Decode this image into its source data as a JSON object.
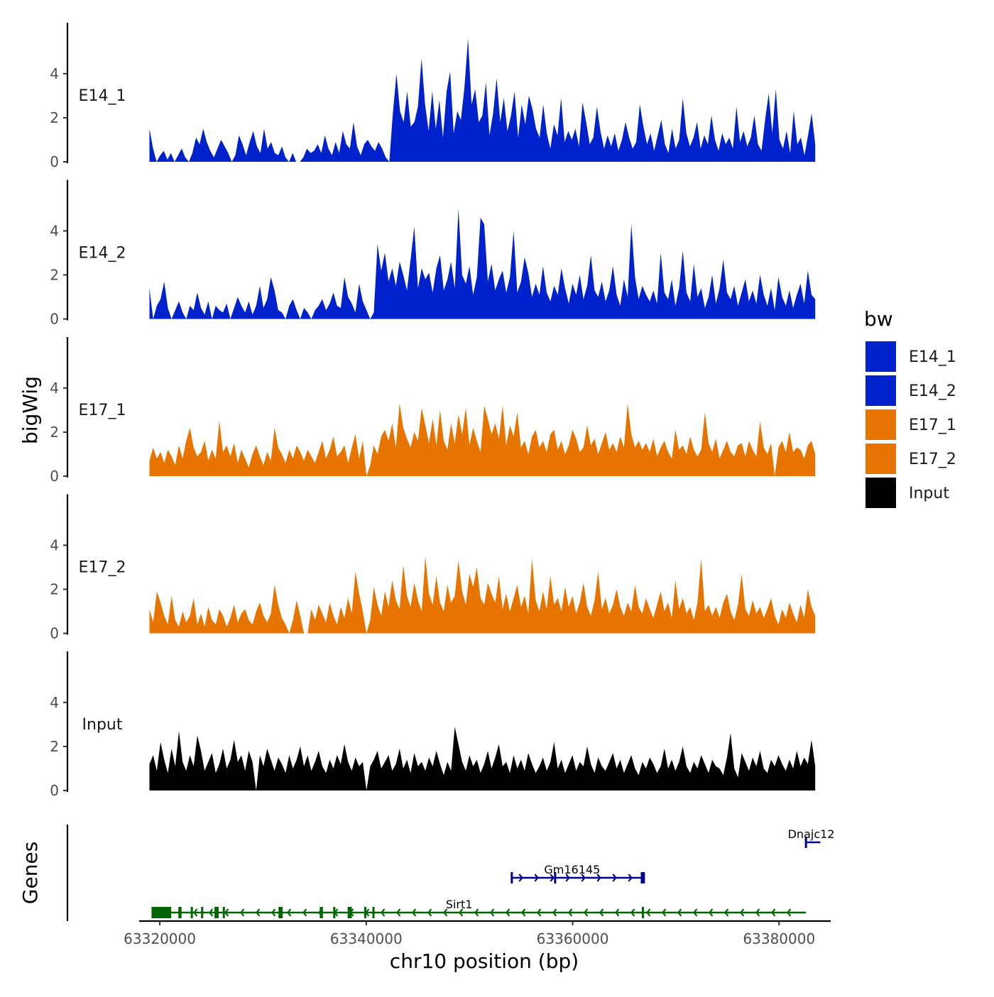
{
  "chart_data": {
    "type": "area",
    "chrom": "chr10",
    "xlabel": "chr10 position (bp)",
    "ylabel": "bigWig",
    "genes_axis_label": "Genes",
    "xlim": [
      63318000,
      63385000
    ],
    "x_ticks": [
      63320000,
      63340000,
      63360000,
      63380000
    ],
    "x_tick_labels": [
      "63320000",
      "63340000",
      "63360000",
      "63380000"
    ],
    "ylim": [
      0,
      6
    ],
    "y_ticks": [
      0,
      2,
      4
    ],
    "y_tick_labels": [
      "0",
      "2",
      "4"
    ],
    "data_start": 63319000,
    "data_end": 63383500,
    "legend": {
      "title": "bw",
      "entries": [
        {
          "label": "E14_1",
          "color": "#0022CC"
        },
        {
          "label": "E14_2",
          "color": "#0022CC"
        },
        {
          "label": "E17_1",
          "color": "#E87400"
        },
        {
          "label": "E17_2",
          "color": "#E87400"
        },
        {
          "label": "Input",
          "color": "#000000"
        }
      ]
    },
    "series": [
      {
        "name": "E14_1",
        "color": "#0022CC",
        "values": [
          1.5,
          0.6,
          0.0,
          0.3,
          0.5,
          0.1,
          0.4,
          0.0,
          0.3,
          0.6,
          0.2,
          0.0,
          0.4,
          1.1,
          0.8,
          1.5,
          0.9,
          0.5,
          0.2,
          0.6,
          1.0,
          0.7,
          0.4,
          0.0,
          0.3,
          1.2,
          0.8,
          0.3,
          0.9,
          1.4,
          0.7,
          0.4,
          1.5,
          0.6,
          0.9,
          0.4,
          0.3,
          0.7,
          0.2,
          0.0,
          0.4,
          0.0,
          0.0,
          0.2,
          0.6,
          0.4,
          0.5,
          0.8,
          0.4,
          1.2,
          0.6,
          0.3,
          0.9,
          0.4,
          1.4,
          0.8,
          0.6,
          1.8,
          0.7,
          0.3,
          0.8,
          1.0,
          0.7,
          0.5,
          0.9,
          0.6,
          0.2,
          0.0,
          2.2,
          4.0,
          2.3,
          1.8,
          3.2,
          1.6,
          1.8,
          2.5,
          4.7,
          2.6,
          1.4,
          3.2,
          1.5,
          2.8,
          1.1,
          3.2,
          4.1,
          1.3,
          2.3,
          1.9,
          3.4,
          5.6,
          2.6,
          3.3,
          1.8,
          2.1,
          3.6,
          1.2,
          2.2,
          3.8,
          1.8,
          2.9,
          1.4,
          2.1,
          3.2,
          1.1,
          2.6,
          1.7,
          3.0,
          2.4,
          1.5,
          1.1,
          2.6,
          1.3,
          0.6,
          1.7,
          1.2,
          2.9,
          0.9,
          1.4,
          1.0,
          1.5,
          0.7,
          2.7,
          1.8,
          0.8,
          1.1,
          2.5,
          1.4,
          0.6,
          1.2,
          0.7,
          1.3,
          0.5,
          1.0,
          1.8,
          1.1,
          0.6,
          0.9,
          2.6,
          1.6,
          0.8,
          1.3,
          0.5,
          1.2,
          1.9,
          0.8,
          0.4,
          1.5,
          0.6,
          1.0,
          2.9,
          1.3,
          0.7,
          1.1,
          1.8,
          0.6,
          1.2,
          0.8,
          2.1,
          1.0,
          0.5,
          1.3,
          0.8,
          1.1,
          0.6,
          2.5,
          0.9,
          1.4,
          0.7,
          1.1,
          2.1,
          0.8,
          0.5,
          1.9,
          3.1,
          1.3,
          3.3,
          1.0,
          0.6,
          1.4,
          0.4,
          2.3,
          0.8,
          1.1,
          0.3,
          1.2,
          2.2,
          0.8
        ]
      },
      {
        "name": "E14_2",
        "color": "#0022CC",
        "values": [
          1.4,
          0.0,
          0.6,
          0.9,
          1.7,
          0.5,
          0.0,
          0.4,
          0.8,
          0.3,
          0.0,
          0.6,
          0.4,
          1.2,
          0.5,
          0.2,
          0.8,
          0.0,
          0.6,
          0.4,
          0.3,
          0.7,
          0.0,
          0.5,
          1.0,
          0.6,
          0.3,
          0.8,
          0.2,
          0.6,
          1.5,
          0.5,
          0.9,
          1.9,
          1.3,
          0.4,
          0.3,
          0.0,
          0.6,
          0.9,
          0.4,
          0.0,
          0.5,
          0.3,
          0.0,
          0.4,
          0.6,
          0.9,
          0.4,
          0.7,
          1.2,
          0.6,
          0.5,
          1.9,
          1.0,
          0.7,
          0.3,
          1.6,
          0.8,
          0.4,
          0.0,
          0.3,
          3.4,
          2.2,
          3.0,
          1.7,
          2.3,
          1.5,
          2.6,
          2.0,
          1.3,
          2.7,
          4.2,
          1.4,
          2.3,
          1.8,
          2.1,
          1.2,
          2.3,
          2.9,
          1.3,
          1.8,
          2.6,
          1.4,
          5.0,
          2.0,
          1.6,
          2.4,
          1.1,
          1.9,
          4.6,
          4.3,
          1.7,
          2.5,
          1.3,
          1.8,
          2.2,
          1.2,
          1.9,
          4.0,
          1.2,
          1.7,
          2.8,
          2.1,
          1.0,
          1.6,
          1.1,
          2.4,
          1.2,
          0.8,
          1.5,
          1.1,
          2.3,
          1.4,
          0.7,
          1.6,
          1.1,
          2.0,
          0.9,
          1.5,
          2.9,
          1.3,
          1.0,
          1.7,
          0.8,
          1.3,
          2.4,
          1.1,
          0.6,
          1.8,
          1.0,
          4.3,
          1.9,
          0.9,
          1.5,
          1.1,
          0.8,
          1.3,
          0.7,
          3.0,
          1.2,
          0.9,
          1.8,
          0.6,
          1.4,
          3.1,
          1.2,
          0.8,
          2.5,
          1.0,
          1.4,
          0.5,
          1.0,
          2.0,
          0.7,
          1.4,
          2.7,
          1.2,
          0.9,
          1.5,
          0.6,
          1.2,
          1.8,
          0.8,
          1.3,
          0.7,
          2.0,
          1.1,
          0.6,
          1.4,
          0.4,
          1.9,
          1.0,
          0.6,
          1.3,
          0.5,
          1.1,
          1.6,
          0.7,
          2.2,
          1.1,
          0.9
        ]
      },
      {
        "name": "E17_1",
        "color": "#E87400",
        "values": [
          0.7,
          1.3,
          0.8,
          1.1,
          0.6,
          1.2,
          0.9,
          0.5,
          1.4,
          0.8,
          1.6,
          2.2,
          1.3,
          0.9,
          1.1,
          1.6,
          0.7,
          1.2,
          0.8,
          2.5,
          1.1,
          1.4,
          0.9,
          1.5,
          0.6,
          1.2,
          0.8,
          0.4,
          1.0,
          1.4,
          0.9,
          0.5,
          1.1,
          0.7,
          2.2,
          1.3,
          1.0,
          0.6,
          1.2,
          0.8,
          1.4,
          1.1,
          0.7,
          1.2,
          0.9,
          0.6,
          1.1,
          1.6,
          0.8,
          1.2,
          1.8,
          0.9,
          1.1,
          1.4,
          0.6,
          1.3,
          1.9,
          0.8,
          1.6,
          0.0,
          0.5,
          1.4,
          1.0,
          1.8,
          2.1,
          1.6,
          2.4,
          1.3,
          3.3,
          2.2,
          1.7,
          1.3,
          2.0,
          1.6,
          3.1,
          2.3,
          1.5,
          2.6,
          1.4,
          3.0,
          1.6,
          1.2,
          2.4,
          1.5,
          2.8,
          1.9,
          3.1,
          1.4,
          2.2,
          1.6,
          1.1,
          3.2,
          2.6,
          1.9,
          2.4,
          1.7,
          3.2,
          1.4,
          2.3,
          1.8,
          2.9,
          1.3,
          1.6,
          1.0,
          1.8,
          2.1,
          1.3,
          1.6,
          1.1,
          1.9,
          2.1,
          1.2,
          1.6,
          1.0,
          1.4,
          2.1,
          1.7,
          1.1,
          1.3,
          2.3,
          1.4,
          1.7,
          1.0,
          1.5,
          2.0,
          1.2,
          1.5,
          1.1,
          1.8,
          1.3,
          3.3,
          1.9,
          1.3,
          1.6,
          1.2,
          1.5,
          1.1,
          1.7,
          0.9,
          1.3,
          1.6,
          1.1,
          0.8,
          2.1,
          1.2,
          1.4,
          1.0,
          1.8,
          1.2,
          0.9,
          1.2,
          2.9,
          1.5,
          1.1,
          1.7,
          0.8,
          1.2,
          1.6,
          1.1,
          0.9,
          1.4,
          1.5,
          0.9,
          1.6,
          1.2,
          0.9,
          2.5,
          1.3,
          1.0,
          1.5,
          0.0,
          1.3,
          1.6,
          1.1,
          2.0,
          1.1,
          1.3,
          1.2,
          0.8,
          1.4,
          1.6,
          1.0
        ]
      },
      {
        "name": "E17_2",
        "color": "#E87400",
        "values": [
          1.1,
          0.5,
          1.9,
          1.4,
          0.8,
          0.4,
          1.7,
          0.6,
          0.3,
          1.0,
          0.5,
          0.8,
          1.6,
          0.4,
          0.9,
          0.3,
          1.2,
          0.6,
          0.4,
          1.1,
          0.8,
          0.3,
          0.7,
          1.3,
          0.5,
          0.9,
          1.1,
          0.6,
          0.4,
          1.0,
          1.4,
          0.8,
          0.5,
          0.9,
          2.2,
          1.3,
          0.7,
          0.4,
          0.0,
          0.6,
          1.5,
          0.8,
          0.0,
          0.0,
          1.1,
          0.6,
          1.3,
          0.9,
          0.5,
          1.4,
          0.8,
          0.4,
          1.2,
          0.7,
          1.6,
          0.9,
          2.8,
          1.8,
          1.0,
          0.0,
          0.6,
          2.1,
          1.3,
          0.8,
          1.9,
          1.2,
          2.4,
          1.5,
          1.1,
          3.1,
          1.7,
          1.2,
          2.3,
          1.5,
          1.0,
          3.5,
          1.8,
          1.3,
          2.6,
          1.4,
          1.0,
          2.2,
          1.4,
          1.7,
          3.3,
          1.9,
          1.3,
          2.7,
          2.1,
          3.0,
          1.6,
          1.3,
          2.3,
          1.8,
          1.4,
          2.6,
          1.1,
          1.8,
          1.0,
          1.6,
          2.2,
          1.2,
          1.7,
          0.9,
          3.4,
          1.5,
          1.0,
          1.9,
          1.1,
          2.6,
          1.3,
          1.6,
          1.0,
          2.1,
          1.2,
          1.7,
          0.9,
          1.4,
          2.3,
          1.2,
          0.8,
          1.5,
          2.8,
          1.1,
          1.6,
          0.9,
          1.3,
          2.0,
          1.2,
          0.8,
          1.4,
          1.0,
          2.2,
          1.2,
          0.9,
          1.6,
          1.1,
          0.7,
          1.3,
          1.9,
          1.0,
          1.4,
          0.7,
          2.4,
          1.1,
          1.6,
          0.9,
          1.2,
          0.6,
          1.4,
          3.4,
          1.0,
          1.3,
          0.8,
          1.2,
          0.7,
          1.4,
          1.8,
          1.0,
          0.6,
          1.3,
          2.7,
          1.1,
          0.8,
          1.5,
          0.9,
          1.2,
          0.7,
          1.1,
          1.6,
          0.8,
          0.4,
          1.1,
          0.7,
          1.4,
          0.9,
          0.5,
          1.3,
          0.7,
          2.0,
          1.2,
          0.8
        ]
      },
      {
        "name": "Input",
        "color": "#000000",
        "values": [
          1.2,
          1.6,
          0.9,
          2.2,
          1.4,
          0.8,
          1.9,
          1.1,
          2.7,
          1.3,
          0.9,
          1.6,
          1.1,
          2.5,
          1.8,
          0.9,
          1.3,
          1.7,
          0.8,
          1.2,
          1.9,
          1.0,
          1.4,
          2.3,
          1.3,
          1.6,
          0.9,
          1.8,
          1.3,
          0.0,
          1.6,
          1.1,
          1.9,
          1.4,
          0.9,
          1.5,
          1.2,
          0.8,
          1.6,
          1.0,
          1.4,
          2.0,
          1.1,
          1.6,
          0.9,
          1.3,
          1.8,
          1.1,
          0.8,
          1.4,
          1.0,
          1.6,
          1.2,
          2.1,
          1.3,
          0.9,
          1.5,
          1.1,
          1.3,
          0.0,
          1.1,
          1.4,
          1.8,
          1.0,
          1.3,
          1.6,
          0.9,
          1.2,
          1.9,
          1.0,
          1.4,
          0.8,
          1.7,
          1.1,
          1.3,
          0.9,
          1.5,
          1.1,
          1.8,
          1.2,
          0.7,
          1.3,
          0.9,
          2.9,
          2.1,
          1.3,
          0.9,
          1.6,
          1.1,
          1.4,
          0.8,
          1.2,
          1.8,
          1.0,
          1.5,
          2.1,
          1.1,
          1.3,
          0.8,
          1.6,
          1.0,
          1.4,
          0.9,
          1.7,
          1.2,
          0.8,
          1.1,
          1.5,
          0.9,
          1.3,
          2.2,
          1.0,
          1.4,
          0.8,
          1.2,
          1.6,
          0.9,
          1.3,
          1.1,
          2.0,
          1.2,
          0.8,
          1.5,
          1.1,
          0.9,
          1.3,
          1.7,
          1.0,
          1.4,
          0.8,
          1.2,
          1.6,
          1.0,
          0.7,
          1.3,
          1.0,
          1.5,
          1.2,
          0.8,
          1.1,
          1.9,
          1.0,
          1.4,
          0.9,
          1.3,
          2.0,
          1.1,
          0.8,
          1.3,
          1.0,
          1.6,
          1.2,
          0.8,
          1.4,
          1.1,
          1.0,
          0.7,
          1.5,
          2.6,
          1.0,
          0.6,
          1.7,
          1.3,
          0.9,
          1.5,
          1.1,
          1.8,
          1.0,
          0.8,
          1.4,
          1.1,
          1.6,
          1.2,
          0.9,
          1.4,
          1.0,
          1.8,
          1.1,
          1.5,
          1.2,
          2.3,
          1.1
        ]
      }
    ],
    "genes": [
      {
        "name": "Sirt1",
        "strand": "-",
        "start": 63319200,
        "end": 63382600,
        "color": "#006400",
        "row": 0,
        "exons": [
          [
            63319200,
            63321100
          ],
          [
            63321800,
            63322100
          ],
          [
            63323000,
            63323200
          ],
          [
            63324000,
            63324200
          ],
          [
            63325300,
            63325700
          ],
          [
            63326100,
            63326300
          ],
          [
            63331500,
            63331900
          ],
          [
            63335500,
            63335800
          ],
          [
            63336800,
            63337000
          ],
          [
            63338200,
            63338600
          ],
          [
            63339800,
            63340000
          ],
          [
            63340600,
            63340800
          ],
          [
            63366700,
            63366800
          ]
        ]
      },
      {
        "name": "Gm16145",
        "strand": "+",
        "start": 63354000,
        "end": 63367000,
        "color": "#00008B",
        "row": 1,
        "exons": [
          [
            63354000,
            63354200
          ],
          [
            63358200,
            63358400
          ],
          [
            63366600,
            63367000
          ]
        ]
      },
      {
        "name": "Dnajc12",
        "strand": "+",
        "start": 63382500,
        "end": 63384000,
        "color": "#00008B",
        "row": 2,
        "exons": [
          [
            63382500,
            63382700
          ]
        ]
      }
    ]
  }
}
